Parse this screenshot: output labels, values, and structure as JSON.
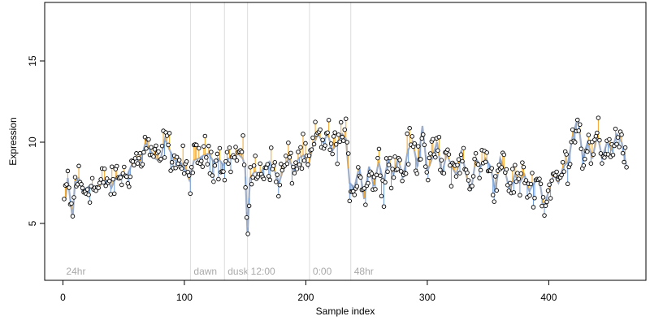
{
  "chart_data": {
    "type": "scatter",
    "title": "",
    "xlabel": "Sample index",
    "ylabel": "Expression",
    "xlim": [
      -15,
      480
    ],
    "ylim": [
      1.5,
      18.6
    ],
    "x_ticks": [
      0,
      100,
      200,
      300,
      400
    ],
    "y_ticks": [
      5,
      10,
      15
    ],
    "grid": false,
    "legend": "none",
    "period_markers": [
      {
        "x": 0,
        "label": "24hr"
      },
      {
        "x": 105,
        "label": "dawn"
      },
      {
        "x": 133,
        "label": "dusk"
      },
      {
        "x": 152,
        "label": "12:00"
      },
      {
        "x": 203,
        "label": "0:00"
      },
      {
        "x": 237,
        "label": "48hr"
      }
    ],
    "anchors": [
      [
        2,
        6.4
      ],
      [
        4,
        7.8
      ],
      [
        6,
        6.5
      ],
      [
        8,
        5.3
      ],
      [
        10,
        7.6
      ],
      [
        13,
        7.8
      ],
      [
        16,
        7.0
      ],
      [
        20,
        7.2
      ],
      [
        24,
        7.4
      ],
      [
        28,
        7.0
      ],
      [
        32,
        7.5
      ],
      [
        36,
        7.8
      ],
      [
        40,
        7.2
      ],
      [
        44,
        7.9
      ],
      [
        48,
        8.0
      ],
      [
        52,
        7.8
      ],
      [
        56,
        8.5
      ],
      [
        60,
        9.0
      ],
      [
        64,
        8.8
      ],
      [
        68,
        10.0
      ],
      [
        72,
        9.5
      ],
      [
        76,
        9.0
      ],
      [
        80,
        8.8
      ],
      [
        84,
        10.2
      ],
      [
        88,
        9.5
      ],
      [
        92,
        8.9
      ],
      [
        96,
        8.8
      ],
      [
        100,
        8.5
      ],
      [
        104,
        7.7
      ],
      [
        108,
        8.9
      ],
      [
        112,
        9.0
      ],
      [
        116,
        9.2
      ],
      [
        120,
        9.3
      ],
      [
        124,
        8.8
      ],
      [
        128,
        9.0
      ],
      [
        132,
        8.6
      ],
      [
        136,
        9.0
      ],
      [
        140,
        9.0
      ],
      [
        144,
        9.3
      ],
      [
        148,
        9.0
      ],
      [
        150,
        8.5
      ],
      [
        152,
        4.2
      ],
      [
        154,
        7.8
      ],
      [
        158,
        8.2
      ],
      [
        162,
        8.0
      ],
      [
        166,
        8.5
      ],
      [
        170,
        8.8
      ],
      [
        174,
        8.3
      ],
      [
        178,
        7.5
      ],
      [
        182,
        8.5
      ],
      [
        186,
        9.0
      ],
      [
        190,
        8.3
      ],
      [
        194,
        9.0
      ],
      [
        198,
        9.2
      ],
      [
        202,
        8.5
      ],
      [
        206,
        9.8
      ],
      [
        210,
        10.5
      ],
      [
        214,
        10.0
      ],
      [
        218,
        10.5
      ],
      [
        222,
        9.5
      ],
      [
        226,
        10.0
      ],
      [
        230,
        10.5
      ],
      [
        233,
        10.2
      ],
      [
        236,
        7.5
      ],
      [
        240,
        7.2
      ],
      [
        244,
        8.5
      ],
      [
        248,
        6.5
      ],
      [
        252,
        8.5
      ],
      [
        256,
        7.3
      ],
      [
        260,
        8.8
      ],
      [
        264,
        7.5
      ],
      [
        268,
        9.0
      ],
      [
        272,
        8.0
      ],
      [
        276,
        9.0
      ],
      [
        280,
        7.8
      ],
      [
        284,
        9.5
      ],
      [
        288,
        10.0
      ],
      [
        292,
        8.5
      ],
      [
        296,
        11.0
      ],
      [
        300,
        8.2
      ],
      [
        304,
        9.0
      ],
      [
        308,
        10.0
      ],
      [
        312,
        8.0
      ],
      [
        316,
        9.3
      ],
      [
        320,
        8.5
      ],
      [
        324,
        8.0
      ],
      [
        328,
        9.5
      ],
      [
        332,
        8.0
      ],
      [
        336,
        7.0
      ],
      [
        340,
        9.0
      ],
      [
        344,
        8.5
      ],
      [
        348,
        9.0
      ],
      [
        352,
        8.5
      ],
      [
        356,
        7.0
      ],
      [
        360,
        9.0
      ],
      [
        364,
        8.2
      ],
      [
        368,
        7.0
      ],
      [
        372,
        8.0
      ],
      [
        376,
        7.5
      ],
      [
        380,
        8.0
      ],
      [
        384,
        7.0
      ],
      [
        388,
        7.5
      ],
      [
        392,
        7.8
      ],
      [
        396,
        6.0
      ],
      [
        400,
        7.0
      ],
      [
        404,
        8.0
      ],
      [
        408,
        7.5
      ],
      [
        412,
        8.5
      ],
      [
        416,
        8.8
      ],
      [
        420,
        10.5
      ],
      [
        424,
        11.5
      ],
      [
        428,
        9.0
      ],
      [
        432,
        10.0
      ],
      [
        436,
        9.0
      ],
      [
        440,
        10.5
      ],
      [
        444,
        9.0
      ],
      [
        448,
        10.0
      ],
      [
        452,
        9.5
      ],
      [
        456,
        10.5
      ],
      [
        460,
        10.0
      ],
      [
        464,
        8.5
      ]
    ],
    "series": [
      {
        "role": "smooth-fit",
        "color": "#a0aec8"
      },
      {
        "role": "residual-positive",
        "color": "#f5a623"
      },
      {
        "role": "residual-negative",
        "color": "#6c9bd8"
      },
      {
        "role": "samples",
        "color": "#000000"
      }
    ]
  }
}
